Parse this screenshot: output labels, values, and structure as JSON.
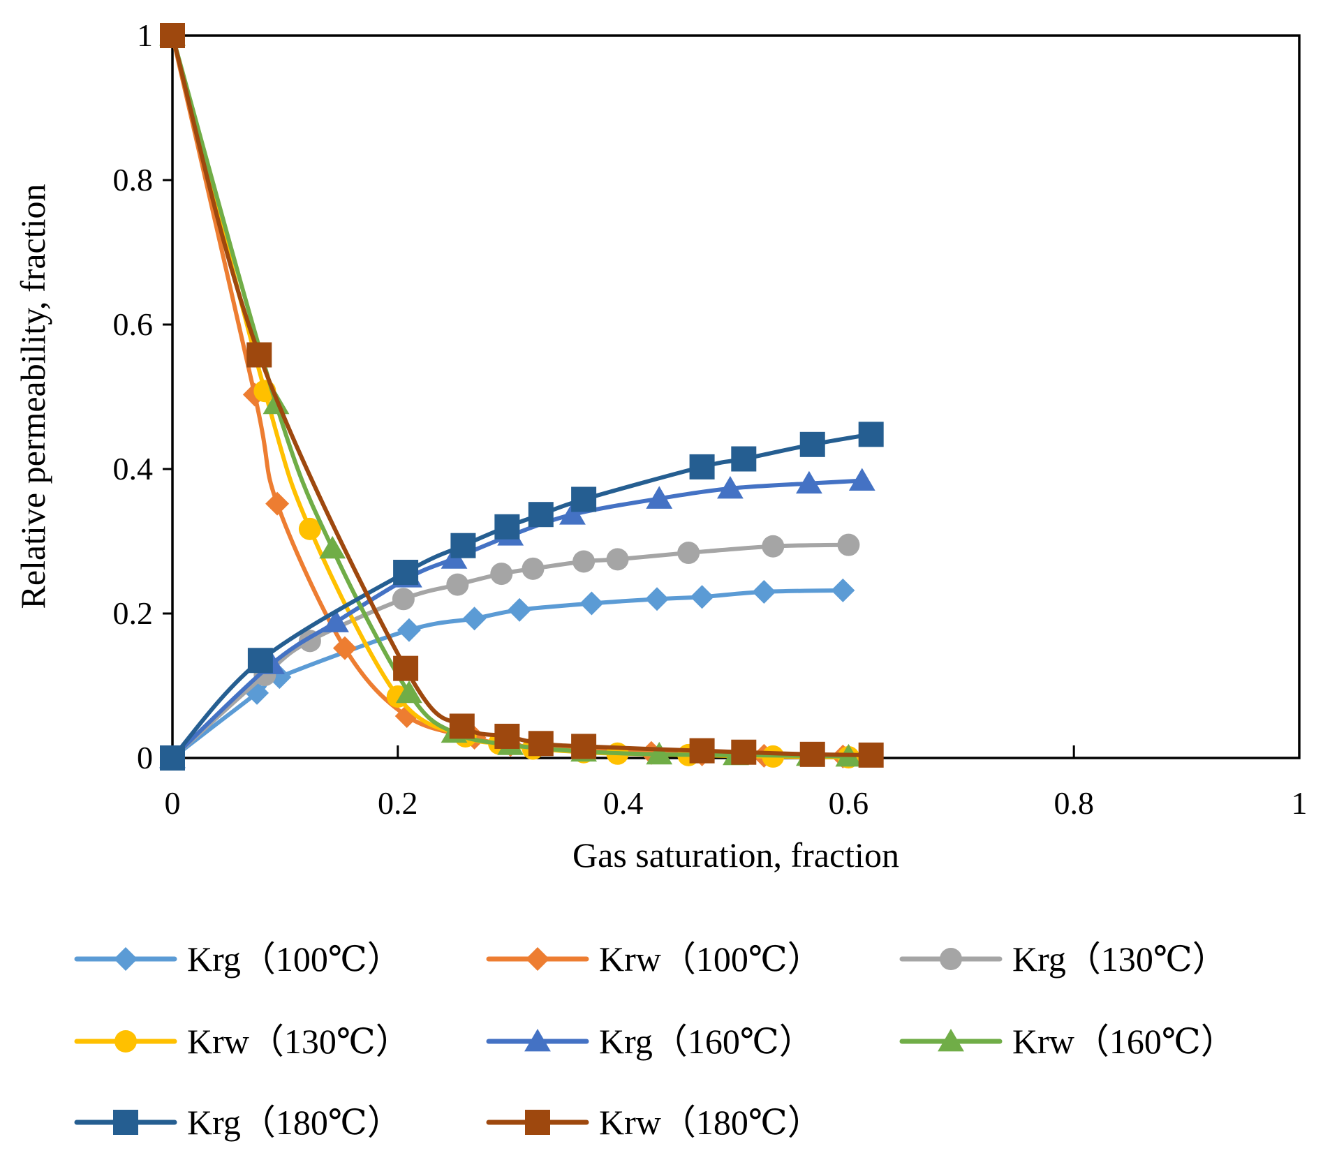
{
  "chart_data": {
    "type": "line",
    "xlabel": "Gas saturation, fraction",
    "ylabel": "Relative  permeability, fraction",
    "xlim": [
      0,
      1
    ],
    "ylim": [
      0,
      1
    ],
    "x_ticks": [
      "0",
      "0.2",
      "0.4",
      "0.6",
      "0.8",
      "1"
    ],
    "y_ticks": [
      "0",
      "0.2",
      "0.4",
      "0.6",
      "0.8",
      "1"
    ],
    "grid": false,
    "legend_position": "bottom",
    "series": [
      {
        "name": "Krg（100℃）",
        "color": "#5B9BD5",
        "marker": "diamond",
        "x": [
          0,
          0.075,
          0.095,
          0.21,
          0.268,
          0.308,
          0.372,
          0.43,
          0.47,
          0.525,
          0.595
        ],
        "y": [
          0,
          0.09,
          0.112,
          0.177,
          0.193,
          0.205,
          0.214,
          0.22,
          0.223,
          0.23,
          0.232
        ]
      },
      {
        "name": "Krw（100℃）",
        "color": "#ED7D31",
        "marker": "diamond",
        "x": [
          0,
          0.073,
          0.093,
          0.153,
          0.208,
          0.268,
          0.3,
          0.37,
          0.425,
          0.47,
          0.525,
          0.595
        ],
        "y": [
          1,
          0.503,
          0.352,
          0.152,
          0.058,
          0.028,
          0.018,
          0.011,
          0.007,
          0.005,
          0.003,
          0.002
        ]
      },
      {
        "name": "Krg（130℃）",
        "color": "#A5A5A5",
        "marker": "circle",
        "x": [
          0,
          0.082,
          0.122,
          0.205,
          0.253,
          0.292,
          0.32,
          0.365,
          0.395,
          0.458,
          0.533,
          0.6
        ],
        "y": [
          0,
          0.115,
          0.162,
          0.22,
          0.24,
          0.255,
          0.262,
          0.272,
          0.275,
          0.284,
          0.293,
          0.295
        ]
      },
      {
        "name": "Krw（130℃）",
        "color": "#FFC000",
        "marker": "circle",
        "x": [
          0,
          0.082,
          0.122,
          0.2,
          0.26,
          0.29,
          0.32,
          0.365,
          0.395,
          0.458,
          0.533,
          0.6
        ],
        "y": [
          1,
          0.508,
          0.317,
          0.085,
          0.03,
          0.02,
          0.013,
          0.008,
          0.006,
          0.004,
          0.002,
          0.001
        ]
      },
      {
        "name": "Krg（160℃）",
        "color": "#4472C4",
        "marker": "triangle",
        "x": [
          0,
          0.088,
          0.145,
          0.21,
          0.25,
          0.3,
          0.355,
          0.432,
          0.495,
          0.565,
          0.612
        ],
        "y": [
          0,
          0.13,
          0.188,
          0.25,
          0.276,
          0.308,
          0.337,
          0.359,
          0.373,
          0.38,
          0.384
        ]
      },
      {
        "name": "Krw（160℃）",
        "color": "#70AD47",
        "marker": "triangle",
        "x": [
          0,
          0.092,
          0.142,
          0.21,
          0.25,
          0.3,
          0.365,
          0.432,
          0.5,
          0.565,
          0.6
        ],
        "y": [
          1,
          0.49,
          0.29,
          0.09,
          0.035,
          0.018,
          0.009,
          0.005,
          0.004,
          0.003,
          0.002
        ]
      },
      {
        "name": "Krg（180℃）",
        "color": "#255E91",
        "marker": "square",
        "x": [
          0,
          0.078,
          0.207,
          0.258,
          0.297,
          0.327,
          0.365,
          0.47,
          0.507,
          0.568,
          0.62
        ],
        "y": [
          0,
          0.135,
          0.257,
          0.294,
          0.32,
          0.337,
          0.358,
          0.403,
          0.414,
          0.434,
          0.448
        ]
      },
      {
        "name": "Krw（180℃）",
        "color": "#9E480E",
        "marker": "square",
        "x": [
          0,
          0.077,
          0.207,
          0.257,
          0.297,
          0.327,
          0.365,
          0.47,
          0.507,
          0.568,
          0.62
        ],
        "y": [
          1,
          0.558,
          0.124,
          0.044,
          0.03,
          0.02,
          0.016,
          0.01,
          0.008,
          0.005,
          0.004
        ]
      }
    ]
  }
}
